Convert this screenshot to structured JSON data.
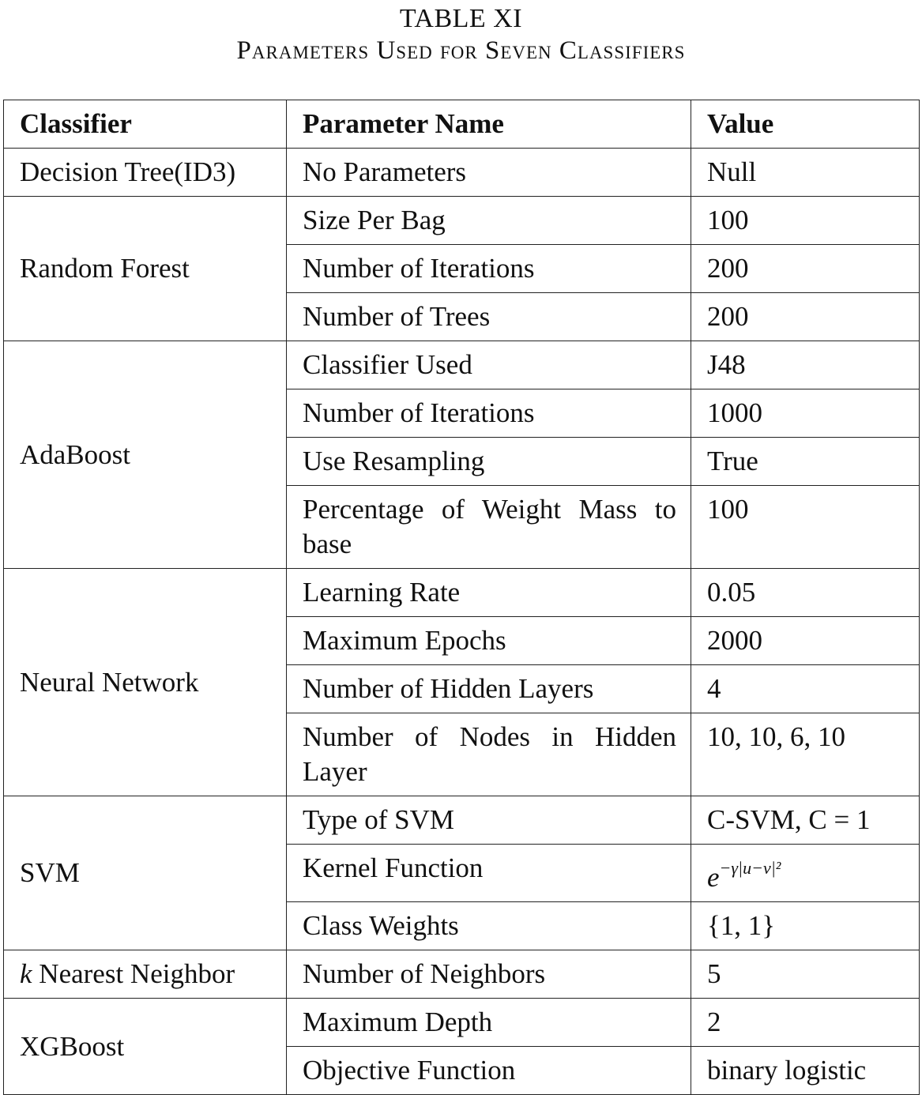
{
  "caption": {
    "table_number": "TABLE XI",
    "title": "Parameters Used for Seven Classifiers"
  },
  "headers": [
    "Classifier",
    "Parameter Name",
    "Value"
  ],
  "groups": [
    {
      "classifier": "Decision Tree(ID3)",
      "rows": [
        {
          "param": "No Parameters",
          "value": "Null"
        }
      ]
    },
    {
      "classifier": "Random Forest",
      "rows": [
        {
          "param": "Size Per Bag",
          "value": "100"
        },
        {
          "param": "Number of Iterations",
          "value": "200"
        },
        {
          "param": "Number of Trees",
          "value": "200"
        }
      ]
    },
    {
      "classifier": "AdaBoost",
      "rows": [
        {
          "param": "Classifier Used",
          "value": "J48"
        },
        {
          "param": "Number of Iterations",
          "value": "1000"
        },
        {
          "param": "Use Resampling",
          "value": "True"
        },
        {
          "param": "Percentage of Weight Mass to base",
          "value": "100"
        }
      ]
    },
    {
      "classifier": "Neural Network",
      "rows": [
        {
          "param": "Learning Rate",
          "value": "0.05"
        },
        {
          "param": "Maximum Epochs",
          "value": "2000"
        },
        {
          "param": "Number of Hidden Layers",
          "value": "4"
        },
        {
          "param": "Number of Nodes in Hidden Layer",
          "value": "10, 10, 6, 10"
        }
      ]
    },
    {
      "classifier": "SVM",
      "rows": [
        {
          "param": "Type of SVM",
          "value": "C-SVM, C = 1"
        },
        {
          "param": "Kernel Function",
          "value_base": "e",
          "value_exponent": "−γ|u−v|²"
        },
        {
          "param": "Class Weights",
          "value": "{1, 1}"
        }
      ]
    },
    {
      "classifier_italic": "k",
      "classifier": " Nearest Neighbor",
      "rows": [
        {
          "param": "Number of Neighbors",
          "value": "5"
        }
      ]
    },
    {
      "classifier": "XGBoost",
      "rows": [
        {
          "param": "Maximum Depth",
          "value": "2"
        },
        {
          "param": "Objective Function",
          "value": "binary logistic"
        }
      ]
    }
  ]
}
